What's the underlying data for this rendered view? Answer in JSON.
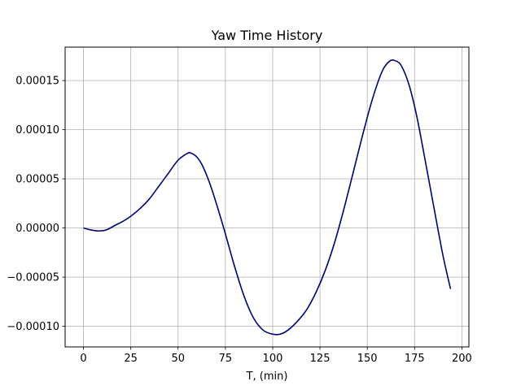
{
  "chart_data": {
    "type": "line",
    "title": "Yaw Time History",
    "xlabel": "T, (min)",
    "ylabel": "",
    "xlim": [
      -9.7,
      203.7
    ],
    "ylim": [
      -0.000121,
      0.000184
    ],
    "grid": true,
    "x_ticks": [
      0,
      25,
      50,
      75,
      100,
      125,
      150,
      175,
      200
    ],
    "x_tick_labels": [
      "0",
      "25",
      "50",
      "75",
      "100",
      "125",
      "150",
      "175",
      "200"
    ],
    "y_ticks": [
      -0.0001,
      -5e-05,
      0,
      5e-05,
      0.0001,
      0.00015
    ],
    "y_tick_labels": [
      "−0.00010",
      "−0.00005",
      "0.00000",
      "0.00005",
      "0.00010",
      "0.00015"
    ],
    "series": [
      {
        "color": "#00007f",
        "x": [
          0,
          4,
          8,
          12,
          17,
          21,
          25,
          30,
          35,
          40,
          45,
          50,
          55,
          57,
          60,
          63,
          67,
          71,
          75,
          80,
          85,
          90,
          95,
          100,
          104,
          108,
          113,
          118,
          123,
          128,
          133,
          138,
          143,
          148,
          153,
          158,
          162,
          165,
          168,
          172,
          176,
          180,
          185,
          190,
          194
        ],
        "y": [
          0.0,
          -2e-06,
          -3e-06,
          -2e-06,
          3e-06,
          7e-06,
          1.2e-05,
          2e-05,
          3e-05,
          4.3e-05,
          5.6e-05,
          6.9e-05,
          7.6e-05,
          7.6e-05,
          7.2e-05,
          6.3e-05,
          4.4e-05,
          2e-05,
          -6e-06,
          -4e-05,
          -7e-05,
          -9.2e-05,
          -0.000104,
          -0.000108,
          -0.000108,
          -0.000104,
          -9.5e-05,
          -8.3e-05,
          -6.5e-05,
          -4.2e-05,
          -1.3e-05,
          2.2e-05,
          6e-05,
          9.8e-05,
          0.000133,
          0.00016,
          0.00017,
          0.00017,
          0.000165,
          0.000146,
          0.000115,
          7.5e-05,
          2.3e-05,
          -2.8e-05,
          -6.2e-05
        ]
      }
    ]
  }
}
